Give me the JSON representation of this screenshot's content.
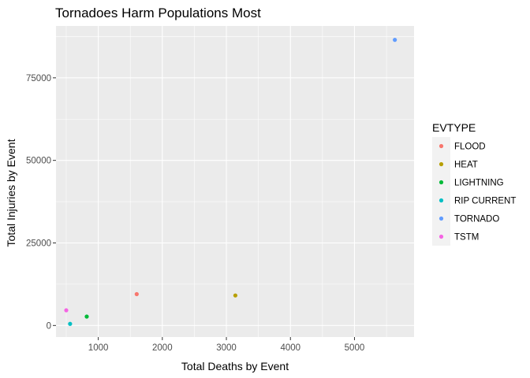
{
  "chart_data": {
    "type": "scatter",
    "title": "Tornadoes Harm Populations Most",
    "xlabel": "Total Deaths by Event",
    "ylabel": "Total Injuries by Event",
    "xlim": [
      340,
      5930
    ],
    "ylim": [
      -3500,
      90700
    ],
    "xticks": [
      1000,
      2000,
      3000,
      4000,
      5000
    ],
    "yticks": [
      0,
      25000,
      50000,
      75000
    ],
    "xtick_labels": [
      "1000",
      "2000",
      "3000",
      "4000",
      "5000"
    ],
    "ytick_labels": [
      "0",
      "25000",
      "50000",
      "75000"
    ],
    "grid": true,
    "legend": {
      "title": "EVTYPE",
      "placement": "right"
    },
    "series": [
      {
        "name": "FLOOD",
        "color": "#F8766D",
        "x": [
          1600
        ],
        "y": [
          9500
        ]
      },
      {
        "name": "HEAT",
        "color": "#B79F00",
        "x": [
          3140
        ],
        "y": [
          9100
        ]
      },
      {
        "name": "LIGHTNING",
        "color": "#00BA38",
        "x": [
          820
        ],
        "y": [
          2700
        ]
      },
      {
        "name": "RIP CURRENT",
        "color": "#00BFC4",
        "x": [
          560
        ],
        "y": [
          500
        ]
      },
      {
        "name": "TORNADO",
        "color": "#619CFF",
        "x": [
          5630
        ],
        "y": [
          86500
        ]
      },
      {
        "name": "TSTM",
        "color": "#F564E3",
        "x": [
          500
        ],
        "y": [
          4600
        ]
      }
    ]
  }
}
